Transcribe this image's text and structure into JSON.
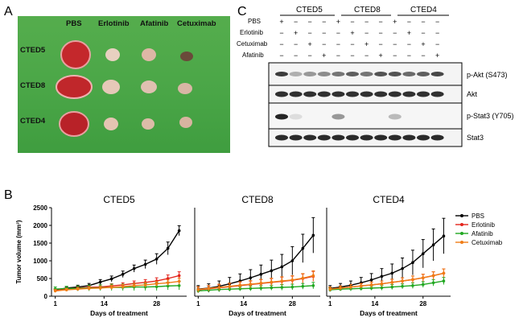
{
  "panel_a": {
    "letter": "A",
    "columns": [
      "PBS",
      "Erlotinib",
      "Afatinib",
      "Cetuximab"
    ],
    "rows": [
      "CTED5",
      "CTED8",
      "CTED4"
    ]
  },
  "panel_c": {
    "letter": "C",
    "groups": [
      "CTED5",
      "CTED8",
      "CTED4"
    ],
    "treatments": [
      "PBS",
      "Erlotinib",
      "Cetuximab",
      "Afatinib"
    ],
    "treatment_marks": [
      [
        "+",
        "−",
        "−",
        "−",
        "+",
        "−",
        "−",
        "−",
        "+",
        "−",
        "−",
        "−"
      ],
      [
        "−",
        "+",
        "−",
        "−",
        "−",
        "+",
        "−",
        "−",
        "−",
        "+",
        "−",
        "−"
      ],
      [
        "−",
        "−",
        "+",
        "−",
        "−",
        "−",
        "+",
        "−",
        "−",
        "−",
        "+",
        "−"
      ],
      [
        "−",
        "−",
        "−",
        "+",
        "−",
        "−",
        "−",
        "+",
        "−",
        "−",
        "−",
        "+"
      ]
    ],
    "blots": [
      "p-Akt (S473)",
      "Akt",
      "p-Stat3 (Y705)",
      "Stat3"
    ]
  },
  "panel_b": {
    "letter": "B"
  },
  "chart_data": [
    {
      "type": "line",
      "title": "CTED5",
      "xlabel": "Days of treatment",
      "ylabel": "Tumor volume (mm³)",
      "x": [
        1,
        4,
        7,
        10,
        13,
        16,
        19,
        22,
        25,
        28,
        31,
        34
      ],
      "xticks": [
        1,
        14,
        28
      ],
      "yticks": [
        0,
        500,
        1000,
        1500,
        2000,
        2500
      ],
      "ylim": [
        0,
        2500
      ],
      "series": [
        {
          "name": "PBS",
          "color": "#000000",
          "values": [
            170,
            230,
            260,
            300,
            400,
            490,
            620,
            780,
            900,
            1050,
            1350,
            1850
          ],
          "err": [
            40,
            40,
            50,
            60,
            70,
            80,
            90,
            100,
            120,
            150,
            180,
            140
          ]
        },
        {
          "name": "Erlotinib",
          "color": "#e3241c",
          "values": [
            160,
            200,
            230,
            250,
            260,
            290,
            320,
            360,
            390,
            430,
            500,
            580
          ],
          "err": [
            40,
            40,
            50,
            50,
            60,
            60,
            60,
            70,
            80,
            90,
            100,
            110
          ]
        },
        {
          "name": "Afatinib",
          "color": "#22a822",
          "values": [
            200,
            220,
            220,
            230,
            240,
            250,
            250,
            260,
            260,
            270,
            290,
            300
          ],
          "err": [
            60,
            60,
            70,
            80,
            80,
            90,
            90,
            100,
            100,
            110,
            110,
            120
          ]
        },
        {
          "name": "Cetuximab",
          "color": "#f07d16",
          "values": [
            150,
            180,
            200,
            220,
            230,
            250,
            270,
            300,
            320,
            350,
            380,
            420
          ],
          "err": [
            40,
            40,
            40,
            50,
            50,
            60,
            60,
            60,
            70,
            70,
            80,
            90
          ]
        }
      ]
    },
    {
      "type": "line",
      "title": "CTED8",
      "xlabel": "Days of treatment",
      "x": [
        1,
        4,
        7,
        10,
        13,
        16,
        19,
        22,
        25,
        28,
        31,
        34
      ],
      "xticks": [
        1,
        14,
        28
      ],
      "ylim": [
        0,
        2500
      ],
      "series": [
        {
          "name": "PBS",
          "color": "#000000",
          "values": [
            200,
            230,
            280,
            350,
            430,
            520,
            620,
            720,
            830,
            1000,
            1350,
            1720
          ],
          "err": [
            100,
            120,
            150,
            180,
            200,
            230,
            260,
            300,
            350,
            400,
            400,
            500
          ]
        },
        {
          "name": "Erlotinib",
          "color": "#e3241c",
          "values": [
            180,
            210,
            240,
            270,
            300,
            330,
            360,
            390,
            420,
            450,
            500,
            560
          ],
          "err": [
            80,
            80,
            90,
            90,
            100,
            100,
            110,
            110,
            120,
            120,
            130,
            140
          ]
        },
        {
          "name": "Afatinib",
          "color": "#22a822",
          "values": [
            150,
            170,
            190,
            200,
            210,
            220,
            230,
            240,
            250,
            260,
            280,
            300
          ],
          "err": [
            50,
            50,
            60,
            60,
            60,
            70,
            70,
            70,
            80,
            80,
            80,
            90
          ]
        },
        {
          "name": "Cetuximab",
          "color": "#f07d16",
          "values": [
            190,
            220,
            250,
            280,
            310,
            340,
            370,
            400,
            430,
            460,
            510,
            580
          ],
          "err": [
            80,
            80,
            90,
            90,
            100,
            100,
            110,
            110,
            120,
            120,
            130,
            140
          ]
        }
      ]
    },
    {
      "type": "line",
      "title": "CTED4",
      "xlabel": "Days of treatment",
      "x": [
        1,
        4,
        7,
        10,
        13,
        16,
        19,
        22,
        25,
        28,
        31,
        34
      ],
      "xticks": [
        1,
        14,
        28
      ],
      "ylim": [
        0,
        2500
      ],
      "series": [
        {
          "name": "PBS",
          "color": "#000000",
          "values": [
            220,
            260,
            310,
            380,
            460,
            560,
            650,
            780,
            950,
            1200,
            1450,
            1700
          ],
          "err": [
            80,
            100,
            120,
            150,
            180,
            220,
            260,
            300,
            350,
            400,
            450,
            500
          ]
        },
        {
          "name": "Erlotinib",
          "color": "#e3241c",
          "values": [
            200,
            230,
            260,
            290,
            320,
            350,
            390,
            430,
            470,
            520,
            580,
            650
          ],
          "err": [
            60,
            60,
            70,
            70,
            80,
            80,
            90,
            90,
            100,
            100,
            110,
            120
          ]
        },
        {
          "name": "Afatinib",
          "color": "#22a822",
          "values": [
            180,
            200,
            210,
            220,
            230,
            240,
            260,
            280,
            300,
            330,
            380,
            430
          ],
          "err": [
            50,
            50,
            60,
            60,
            60,
            70,
            70,
            70,
            80,
            80,
            90,
            100
          ]
        },
        {
          "name": "Cetuximab",
          "color": "#f07d16",
          "values": [
            200,
            230,
            260,
            290,
            320,
            350,
            390,
            430,
            470,
            520,
            580,
            650
          ],
          "err": [
            60,
            60,
            70,
            70,
            80,
            80,
            90,
            90,
            100,
            100,
            110,
            120
          ]
        }
      ]
    }
  ]
}
